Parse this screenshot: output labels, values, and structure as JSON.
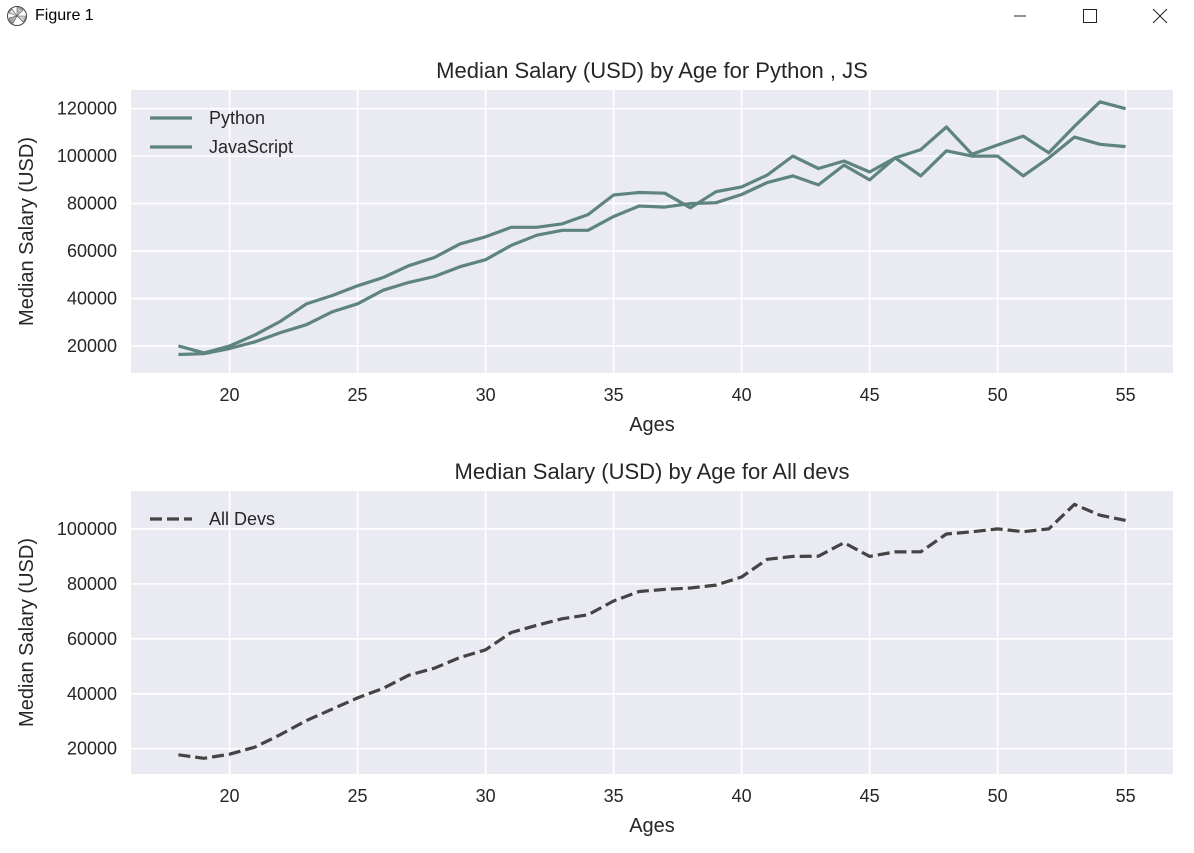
{
  "window": {
    "title": "Figure 1",
    "icon": "matplotlib-logo-icon",
    "buttons": [
      "minimize-icon",
      "maximize-icon",
      "close-icon"
    ]
  },
  "colors": {
    "plot_bg": "#eaeaf2",
    "grid": "#ffffff",
    "line_teal": "#5e8480",
    "line_dark": "#444444",
    "text": "#262626"
  },
  "chart_data": [
    {
      "type": "line",
      "title": "Median Salary (USD) by Age for Python , JS",
      "xlabel": "Ages",
      "ylabel": "Median Salary (USD)",
      "xlim": [
        16.15,
        56.85
      ],
      "ylim": [
        8640,
        127860
      ],
      "xticks": [
        20,
        25,
        30,
        35,
        40,
        45,
        50,
        55
      ],
      "yticks": [
        20000,
        40000,
        60000,
        80000,
        100000,
        120000
      ],
      "grid": true,
      "legend": "top-left",
      "x": [
        18,
        19,
        20,
        21,
        22,
        23,
        24,
        25,
        26,
        27,
        28,
        29,
        30,
        31,
        32,
        33,
        34,
        35,
        36,
        37,
        38,
        39,
        40,
        41,
        42,
        43,
        44,
        45,
        46,
        47,
        48,
        49,
        50,
        51,
        52,
        53,
        54,
        55
      ],
      "series": [
        {
          "name": "Python",
          "color": "#5e8480",
          "style": "solid",
          "values": [
            20046,
            17100,
            20000,
            24744,
            30500,
            37732,
            41247,
            45372,
            48876,
            53850,
            57287,
            63016,
            65998,
            70003,
            70000,
            71496,
            75370,
            83640,
            84666,
            84392,
            78254,
            85000,
            87038,
            91991,
            100000,
            94796,
            97962,
            93302,
            99240,
            102736,
            112285,
            100771,
            104708,
            108423,
            101407,
            112542,
            122870,
            120000
          ]
        },
        {
          "name": "JavaScript",
          "color": "#5e8480",
          "style": "solid",
          "values": [
            16446,
            16791,
            18942,
            21780,
            25704,
            29000,
            34372,
            37810,
            43515,
            46823,
            49293,
            53437,
            56373,
            62375,
            66674,
            68745,
            68746,
            74583,
            79000,
            78508,
            79996,
            80403,
            83820,
            88833,
            91660,
            87892,
            96243,
            90000,
            99313,
            91660,
            102264,
            100000,
            100000,
            91660,
            99240,
            108000,
            105000,
            104000
          ]
        }
      ]
    },
    {
      "type": "line",
      "title": "Median Salary (USD) by Age for All devs",
      "xlabel": "Ages",
      "ylabel": "Median Salary (USD)",
      "xlim": [
        16.15,
        56.85
      ],
      "ylim": [
        10800,
        113800
      ],
      "xticks": [
        20,
        25,
        30,
        35,
        40,
        45,
        50,
        55
      ],
      "yticks": [
        20000,
        40000,
        60000,
        80000,
        100000
      ],
      "grid": true,
      "legend": "top-left",
      "x": [
        18,
        19,
        20,
        21,
        22,
        23,
        24,
        25,
        26,
        27,
        28,
        29,
        30,
        31,
        32,
        33,
        34,
        35,
        36,
        37,
        38,
        39,
        40,
        41,
        42,
        43,
        44,
        45,
        46,
        47,
        48,
        49,
        50,
        51,
        52,
        53,
        54,
        55
      ],
      "series": [
        {
          "name": "All Devs",
          "color": "#444444",
          "style": "dashed",
          "values": [
            17784,
            16500,
            18012,
            20628,
            25206,
            30252,
            34368,
            38496,
            42000,
            46752,
            49320,
            53200,
            56000,
            62316,
            64928,
            67317,
            68748,
            73752,
            77232,
            78000,
            78508,
            79536,
            82488,
            88935,
            90000,
            90056,
            95000,
            90000,
            91633,
            91660,
            98150,
            98964,
            100000,
            98988,
            100000,
            108923,
            105000,
            103117
          ]
        }
      ]
    }
  ]
}
